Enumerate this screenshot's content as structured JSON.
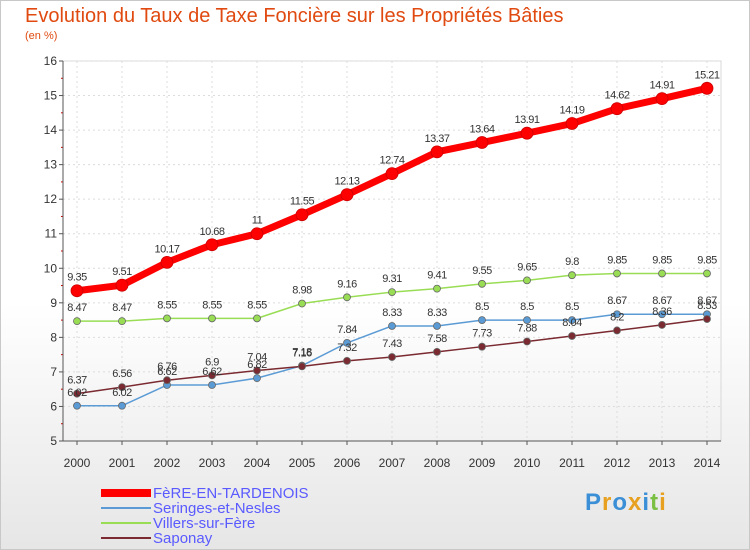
{
  "title": "Evolution du Taux de Taxe Foncière sur les Propriétés Bâties",
  "subtitle": "(en %)",
  "chart_data": {
    "type": "line",
    "title": "Evolution du Taux de Taxe Foncière sur les Propriétés Bâties",
    "ylabel": "(en %)",
    "x": [
      "2000",
      "2001",
      "2002",
      "2003",
      "2004",
      "2005",
      "2006",
      "2007",
      "2008",
      "2009",
      "2010",
      "2011",
      "2012",
      "2013",
      "2014"
    ],
    "ylim": [
      5,
      16
    ],
    "yticks": [
      "5",
      "6",
      "7",
      "8",
      "9",
      "10",
      "11",
      "12",
      "13",
      "14",
      "15",
      "16"
    ],
    "grid": true,
    "legend_position": "bottom-left",
    "series": [
      {
        "name": "FèRE-EN-TARDENOIS",
        "color": "#ff0000",
        "values": [
          9.35,
          9.51,
          10.17,
          10.68,
          11,
          11.55,
          12.13,
          12.74,
          13.37,
          13.64,
          13.91,
          14.19,
          14.62,
          14.91,
          15.21
        ],
        "labels": [
          "9.35",
          "9.51",
          "10.17",
          "10.68",
          "11",
          "11.55",
          "12.13",
          "12.74",
          "13.37",
          "13.64",
          "13.91",
          "14.19",
          "14.62",
          "14.91",
          "15.21"
        ]
      },
      {
        "name": "Seringes-et-Nesles",
        "color": "#5b9bd5",
        "values": [
          6.02,
          6.02,
          6.62,
          6.62,
          6.82,
          7.18,
          7.84,
          8.33,
          8.33,
          8.5,
          8.5,
          8.5,
          8.67,
          8.67,
          8.67
        ],
        "labels": [
          "6.02",
          "6.02",
          "6.62",
          "6.62",
          "6.82",
          "7.18",
          "7.84",
          "8.33",
          "8.33",
          "8.5",
          "8.5",
          "8.5",
          "8.67",
          "8.67",
          "8.67"
        ]
      },
      {
        "name": "Villers-sur-Fère",
        "color": "#99dd55",
        "values": [
          8.47,
          8.47,
          8.55,
          8.55,
          8.55,
          8.98,
          9.16,
          9.31,
          9.41,
          9.55,
          9.65,
          9.8,
          9.85,
          9.85,
          9.85
        ],
        "labels": [
          "8.47",
          "8.47",
          "8.55",
          "8.55",
          "8.55",
          "8.98",
          "9.16",
          "9.31",
          "9.41",
          "9.55",
          "9.65",
          "9.8",
          "9.85",
          "9.85",
          "9.85"
        ]
      },
      {
        "name": "Saponay",
        "color": "#7a2a30",
        "values": [
          6.37,
          6.56,
          6.76,
          6.9,
          7.04,
          7.16,
          7.32,
          7.43,
          7.58,
          7.73,
          7.88,
          8.04,
          8.2,
          8.36,
          8.53
        ],
        "labels": [
          "6.37",
          "6.56",
          "6.76",
          "6.9",
          "7.04",
          "7.16",
          "7.32",
          "7.43",
          "7.58",
          "7.73",
          "7.88",
          "8.04",
          "8.2",
          "8.36",
          "8.53"
        ]
      }
    ]
  },
  "logo": {
    "letters": [
      "P",
      "r",
      "o",
      "x",
      "i",
      "t",
      "i"
    ],
    "colors": [
      "#3a8fd6",
      "#e8a020",
      "#3a8fd6",
      "#e8a020",
      "#3a8fd6",
      "#7bc043",
      "#e8a020"
    ]
  }
}
